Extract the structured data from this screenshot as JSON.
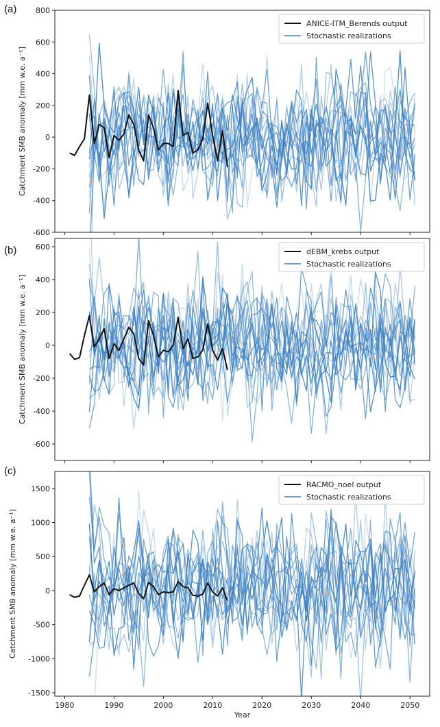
{
  "chart_data": [
    {
      "type": "line",
      "panel_label": "(a)",
      "ylabel": "Catchment SMB anomaly [mm w.e. a⁻¹]",
      "xlabel": "",
      "xlim": [
        1978,
        2054
      ],
      "ylim": [
        -600,
        800
      ],
      "yticks": [
        -600,
        -400,
        -200,
        0,
        200,
        400,
        600,
        800
      ],
      "legend": [
        "ANICE-ITM_Berends output",
        "Stochastic realizations"
      ],
      "legend_position": "top-right",
      "model_series": {
        "name": "ANICE-ITM_Berends output",
        "color": "#111111",
        "x": [
          1981,
          1982,
          1983,
          1984,
          1985,
          1986,
          1987,
          1988,
          1989,
          1990,
          1991,
          1992,
          1993,
          1994,
          1995,
          1996,
          1997,
          1998,
          1999,
          2000,
          2001,
          2002,
          2003,
          2004,
          2005,
          2006,
          2007,
          2008,
          2009,
          2010,
          2011,
          2012,
          2013
        ],
        "values": [
          -100,
          -115,
          -60,
          -10,
          265,
          -40,
          80,
          60,
          -130,
          10,
          -20,
          20,
          140,
          80,
          -80,
          -150,
          140,
          60,
          -80,
          -40,
          -40,
          -60,
          295,
          10,
          30,
          -100,
          -80,
          -10,
          215,
          10,
          -150,
          40,
          -190
        ]
      },
      "realizations": {
        "name": "Stochastic realizations",
        "color": "#3a7fc0",
        "count": 16,
        "start_year": 1985,
        "end_year": 2051,
        "seed": 11,
        "amplitude": 200
      }
    },
    {
      "type": "line",
      "panel_label": "(b)",
      "ylabel": "Catchment SMB anomaly [mm w.e. a⁻¹]",
      "xlabel": "",
      "xlim": [
        1978,
        2054
      ],
      "ylim": [
        -700,
        650
      ],
      "yticks": [
        -600,
        -400,
        -200,
        0,
        200,
        400,
        600
      ],
      "legend": [
        "dEBM_krebs output",
        "Stochastic realizations"
      ],
      "legend_position": "top-right",
      "model_series": {
        "name": "dEBM_krebs output",
        "color": "#111111",
        "x": [
          1981,
          1982,
          1983,
          1984,
          1985,
          1986,
          1987,
          1988,
          1989,
          1990,
          1991,
          1992,
          1993,
          1994,
          1995,
          1996,
          1997,
          1998,
          1999,
          2000,
          2001,
          2002,
          2003,
          2004,
          2005,
          2006,
          2007,
          2008,
          2009,
          2010,
          2011,
          2012,
          2013
        ],
        "values": [
          -50,
          -85,
          -75,
          60,
          180,
          -10,
          40,
          100,
          -80,
          10,
          -30,
          40,
          110,
          70,
          -80,
          -120,
          150,
          60,
          -70,
          -30,
          -40,
          0,
          170,
          -20,
          40,
          -80,
          -70,
          -30,
          130,
          -30,
          -90,
          -20,
          -150
        ]
      },
      "realizations": {
        "name": "Stochastic realizations",
        "color": "#3a7fc0",
        "count": 16,
        "start_year": 1985,
        "end_year": 2051,
        "seed": 29,
        "amplitude": 200
      }
    },
    {
      "type": "line",
      "panel_label": "(c)",
      "ylabel": "Catchment SMB anomaly [mm w.e. a⁻¹]",
      "xlabel": "Year",
      "xlim": [
        1978,
        2054
      ],
      "ylim": [
        -1550,
        1750
      ],
      "yticks": [
        -1500,
        -1000,
        -500,
        0,
        500,
        1000,
        1500
      ],
      "xticks": [
        1980,
        1990,
        2000,
        2010,
        2020,
        2030,
        2040,
        2050
      ],
      "legend": [
        "RACMO_noel output",
        "Stochastic realizations"
      ],
      "legend_position": "top-right",
      "model_series": {
        "name": "RACMO_noel output",
        "color": "#111111",
        "x": [
          1981,
          1982,
          1983,
          1984,
          1985,
          1986,
          1987,
          1988,
          1989,
          1990,
          1991,
          1992,
          1993,
          1994,
          1995,
          1996,
          1997,
          1998,
          1999,
          2000,
          2001,
          2002,
          2003,
          2004,
          2005,
          2006,
          2007,
          2008,
          2009,
          2010,
          2011,
          2012,
          2013
        ],
        "values": [
          -60,
          -100,
          -80,
          80,
          230,
          -20,
          60,
          110,
          -60,
          30,
          0,
          40,
          80,
          110,
          -40,
          -120,
          120,
          60,
          -60,
          -20,
          -30,
          -20,
          130,
          60,
          40,
          -70,
          -80,
          -50,
          110,
          -20,
          -80,
          40,
          -150
        ]
      },
      "realizations": {
        "name": "Stochastic realizations",
        "color": "#3a7fc0",
        "count": 16,
        "start_year": 1985,
        "end_year": 2051,
        "seed": 47,
        "amplitude": 500
      }
    }
  ]
}
